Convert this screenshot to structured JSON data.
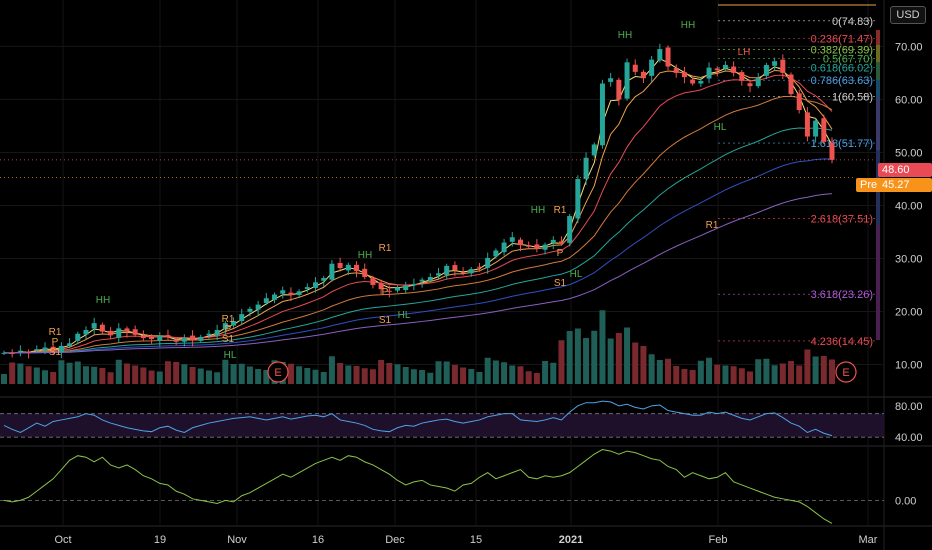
{
  "header": {
    "currency_label": "USD"
  },
  "last_price": {
    "label": "48.60",
    "value": 48.6,
    "color": "#e84b56"
  },
  "premarket": {
    "prefix": "Pre",
    "label": "45.27",
    "value": 45.27,
    "color": "#f7931a"
  },
  "colors": {
    "up": "#26a69a",
    "down": "#ef5350",
    "rsi": "#4fa3e6",
    "osc": "#8bc34a",
    "fib": "#f0a050"
  },
  "chart_data": [
    {
      "type": "candlestick",
      "panel": "price",
      "y_axis_ticks": [
        "70.00",
        "60.00",
        "50.00",
        "40.00",
        "30.00",
        "20.00",
        "10.00"
      ],
      "ylim": [
        5,
        78
      ],
      "x_axis_ticks": [
        "Oct",
        "19",
        "Nov",
        "16",
        "Dec",
        "15",
        "2021",
        "Feb",
        "Mar"
      ],
      "closes": [
        12.2,
        12.0,
        12.6,
        12.3,
        12.9,
        13.2,
        12.8,
        13.5,
        14.0,
        15.8,
        16.5,
        17.8,
        16.2,
        15.5,
        16.8,
        16.2,
        15.6,
        15.0,
        14.8,
        15.4,
        15.1,
        14.3,
        15.0,
        14.6,
        15.2,
        15.8,
        16.5,
        17.8,
        18.2,
        19.5,
        20.5,
        21.3,
        22.5,
        23.2,
        24.0,
        23.1,
        23.8,
        24.6,
        25.5,
        26.3,
        29.0,
        28.2,
        28.8,
        27.6,
        26.5,
        25.0,
        24.2,
        23.8,
        24.5,
        24.9,
        25.2,
        26.0,
        26.5,
        27.2,
        28.6,
        27.8,
        27.2,
        28.0,
        28.4,
        30.1,
        31.5,
        33.0,
        34.0,
        32.5,
        32.2,
        31.8,
        32.6,
        33.5,
        32.8,
        38.0,
        45.0,
        49.0,
        51.5,
        63.0,
        64.0,
        60.0,
        67.0,
        65.2,
        64.0,
        67.5,
        69.5,
        66.2,
        65.0,
        64.2,
        63.0,
        63.5,
        66.0,
        65.5,
        66.5,
        65.0,
        63.5,
        62.5,
        64.0,
        66.5,
        67.2,
        65.0,
        61.0,
        58.0,
        53.0,
        56.0,
        52.0,
        48.6
      ],
      "volume_bars": 101,
      "overlays": [
        "EMA fast",
        "EMA mid",
        "EMA slow",
        "SMA 50",
        "SMA 100",
        "SMA 200"
      ],
      "fib_levels": [
        {
          "label": "0(74.83)",
          "value": 74.83,
          "color": "#cfcfcf"
        },
        {
          "label": "0.236(71.47)",
          "value": 71.47,
          "color": "#e84b56"
        },
        {
          "label": "0.382(69.39)",
          "value": 69.39,
          "color": "#8bc34a"
        },
        {
          "label": "0.5(67.70)",
          "value": 67.7,
          "color": "#4caf50"
        },
        {
          "label": "0.618(66.02)",
          "value": 66.02,
          "color": "#26a69a"
        },
        {
          "label": "0.786(63.63)",
          "value": 63.63,
          "color": "#4fa3e6"
        },
        {
          "label": "1(60.58)",
          "value": 60.58,
          "color": "#cfcfcf"
        },
        {
          "label": "1.618(51.77)",
          "value": 51.77,
          "color": "#4fa3e6"
        },
        {
          "label": "2.618(37.51)",
          "value": 37.51,
          "color": "#e84b56"
        },
        {
          "label": "3.618(23.26)",
          "value": 23.26,
          "color": "#b45ad8"
        },
        {
          "label": "4.236(14.45)",
          "value": 14.45,
          "color": "#e84b56"
        }
      ],
      "pivot_labels": [
        "R1",
        "P",
        "S1",
        "R1",
        "P",
        "S1",
        "R1",
        "P",
        "S1",
        "R1",
        "P",
        "S1",
        "R1"
      ],
      "pattern_labels": [
        "HH",
        "HL",
        "HH",
        "HL",
        "HH",
        "HL",
        "HH",
        "HH",
        "LH",
        "HL"
      ],
      "earnings_markers": [
        "E",
        "E"
      ]
    },
    {
      "type": "line",
      "panel": "rsi",
      "y_axis_ticks": [
        "80.00",
        "40.00"
      ],
      "ylim": [
        30,
        90
      ],
      "band": [
        40,
        70
      ],
      "values": [
        55,
        50,
        46,
        52,
        58,
        54,
        60,
        62,
        64,
        66,
        70,
        68,
        62,
        58,
        55,
        52,
        50,
        48,
        47,
        52,
        54,
        49,
        46,
        52,
        55,
        58,
        60,
        62,
        64,
        65,
        66,
        64,
        62,
        64,
        66,
        63,
        65,
        67,
        68,
        66,
        70,
        62,
        60,
        58,
        55,
        50,
        48,
        47,
        52,
        55,
        54,
        58,
        60,
        62,
        63,
        60,
        58,
        60,
        62,
        66,
        68,
        70,
        70,
        62,
        61,
        60,
        62,
        65,
        62,
        72,
        80,
        84,
        84,
        86,
        85,
        80,
        82,
        78,
        76,
        80,
        81,
        74,
        72,
        70,
        68,
        68,
        72,
        70,
        72,
        68,
        64,
        62,
        66,
        70,
        71,
        65,
        58,
        54,
        46,
        50,
        45,
        42
      ]
    },
    {
      "type": "line",
      "panel": "oscillator",
      "y_axis_ticks": [
        "0.00"
      ],
      "ylim": [
        -1.6,
        3.4
      ],
      "values": [
        0.0,
        -0.1,
        0.0,
        0.2,
        0.6,
        1.0,
        1.4,
        2.0,
        2.6,
        2.9,
        2.8,
        2.5,
        2.8,
        2.3,
        2.1,
        2.3,
        2.0,
        1.6,
        1.4,
        1.1,
        1.0,
        0.6,
        0.4,
        0.1,
        0.0,
        -0.1,
        -0.2,
        0.0,
        -0.1,
        0.3,
        0.5,
        0.8,
        1.1,
        1.4,
        1.7,
        1.5,
        1.8,
        2.1,
        2.4,
        2.6,
        2.8,
        2.6,
        2.9,
        2.8,
        2.5,
        2.3,
        2.0,
        1.7,
        1.3,
        1.0,
        1.2,
        1.3,
        1.0,
        0.9,
        0.8,
        0.6,
        1.0,
        1.1,
        1.5,
        1.8,
        1.4,
        1.6,
        1.8,
        2.0,
        1.5,
        1.4,
        1.6,
        1.5,
        1.6,
        1.8,
        2.2,
        2.6,
        3.0,
        3.3,
        3.2,
        3.0,
        3.2,
        3.1,
        2.9,
        2.7,
        2.6,
        2.2,
        2.0,
        1.5,
        1.8,
        1.6,
        1.4,
        1.5,
        1.8,
        1.2,
        1.0,
        0.8,
        0.6,
        0.4,
        0.2,
        0.1,
        0.0,
        -0.1,
        -0.4,
        -0.8,
        -1.2,
        -1.5
      ]
    }
  ]
}
